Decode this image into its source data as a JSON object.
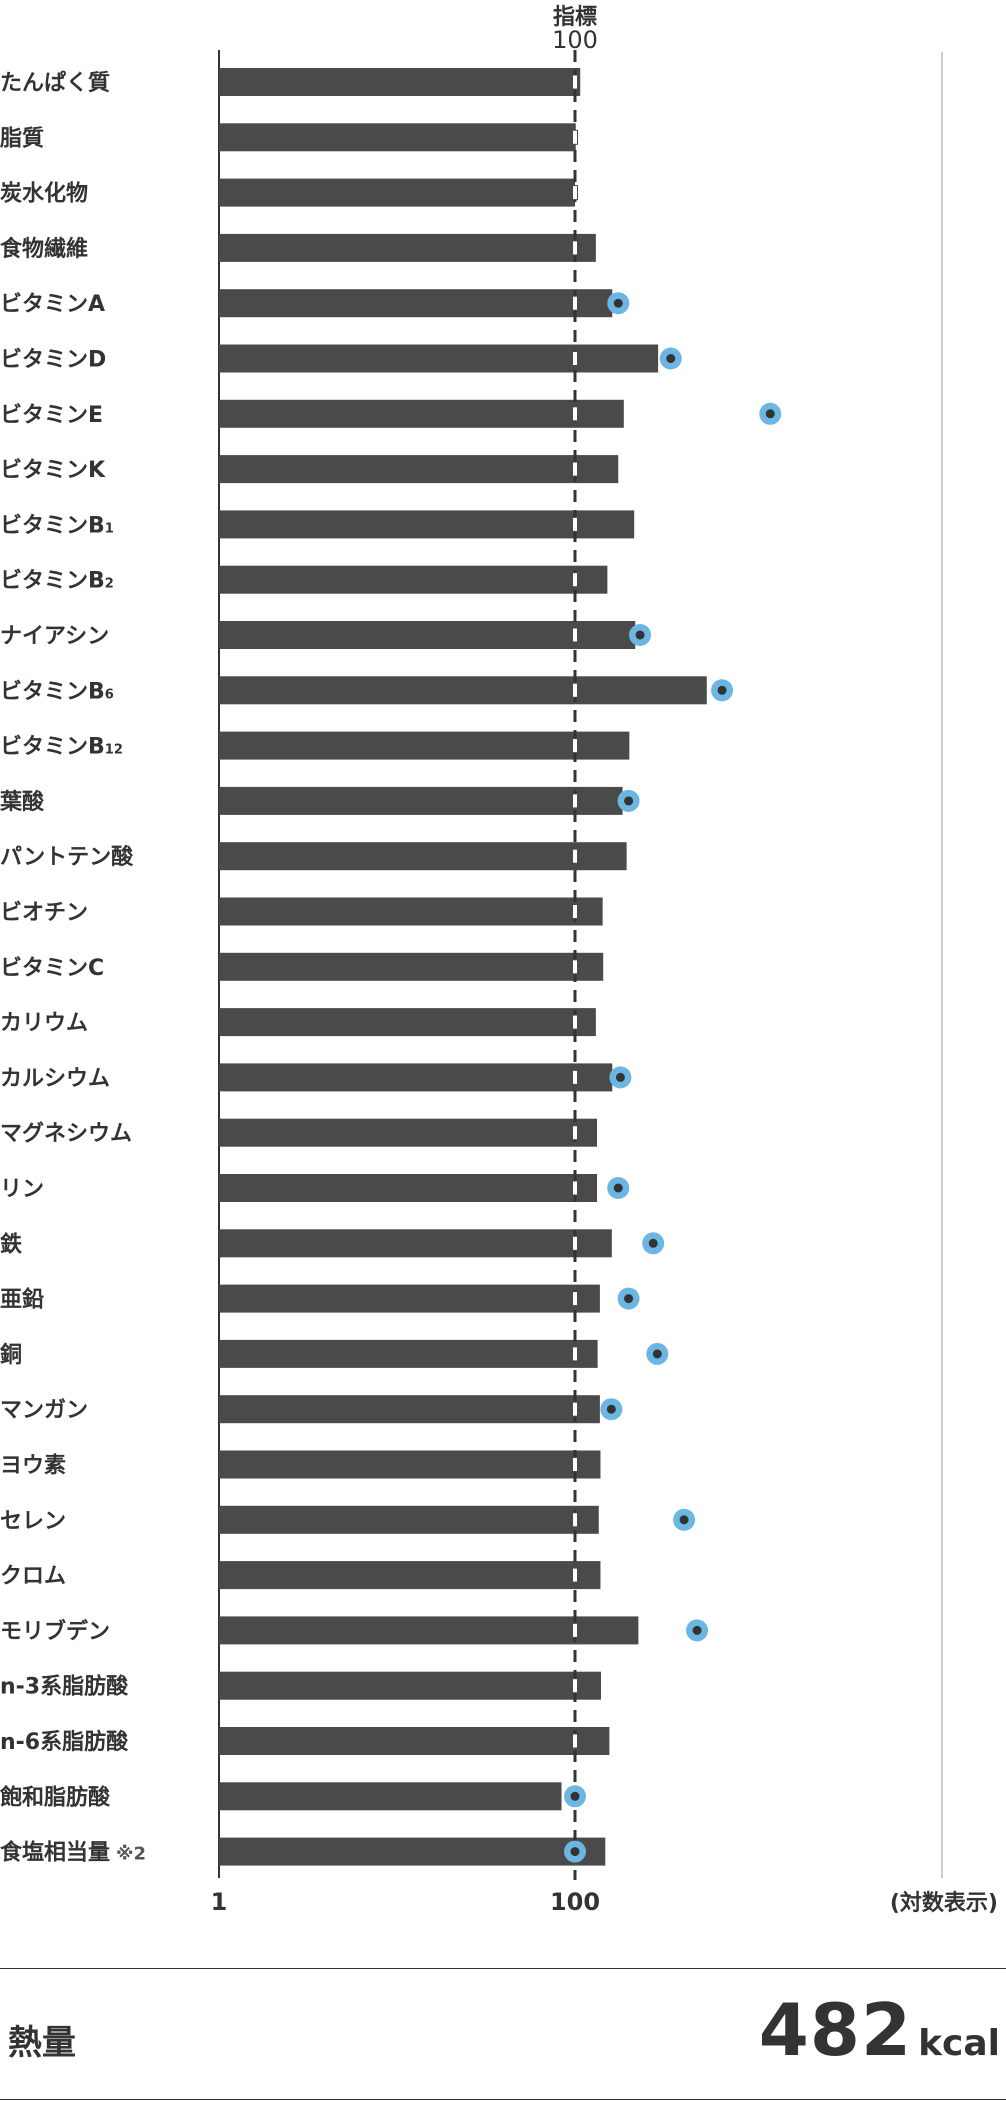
{
  "chart_data": {
    "type": "bar",
    "orientation": "horizontal",
    "scale": "log",
    "reference_label": "指標",
    "reference_value": "100",
    "x_ticks": [
      "1",
      "100"
    ],
    "scale_note": "(対数表示)",
    "categories": [
      {
        "label": "たんぱく質",
        "value": 107,
        "marker": null
      },
      {
        "label": "脂質",
        "value": 101,
        "marker": null
      },
      {
        "label": "炭水化物",
        "value": 100,
        "marker": null
      },
      {
        "label": "食物繊維",
        "value": 131,
        "marker": null
      },
      {
        "label": "ビタミンA",
        "value": 162,
        "marker": 175
      },
      {
        "label": "ビタミンD",
        "value": 293,
        "marker": 345
      },
      {
        "label": "ビタミンE",
        "value": 188,
        "marker": 1250
      },
      {
        "label": "ビタミンK",
        "value": 175,
        "marker": null
      },
      {
        "label": "ビタミンB",
        "sub": "1",
        "value": 215,
        "marker": null
      },
      {
        "label": "ビタミンB",
        "sub": "2",
        "value": 152,
        "marker": null
      },
      {
        "label": "ナイアシン",
        "value": 218,
        "marker": 232
      },
      {
        "label": "ビタミンB",
        "sub": "6",
        "value": 550,
        "marker": 670
      },
      {
        "label": "ビタミンB",
        "sub": "12",
        "value": 202,
        "marker": null
      },
      {
        "label": "葉酸",
        "value": 185,
        "marker": 200
      },
      {
        "label": "パントテン酸",
        "value": 195,
        "marker": null
      },
      {
        "label": "ビオチン",
        "value": 143,
        "marker": null
      },
      {
        "label": "ビタミンC",
        "value": 144,
        "marker": null
      },
      {
        "label": "カリウム",
        "value": 131,
        "marker": null
      },
      {
        "label": "カルシウム",
        "value": 162,
        "marker": 180
      },
      {
        "label": "マグネシウム",
        "value": 133,
        "marker": null
      },
      {
        "label": "リン",
        "value": 133,
        "marker": 175
      },
      {
        "label": "鉄",
        "value": 161,
        "marker": 275
      },
      {
        "label": "亜鉛",
        "value": 138,
        "marker": 200
      },
      {
        "label": "銅",
        "value": 134,
        "marker": 290
      },
      {
        "label": "マンガン",
        "value": 138,
        "marker": 160
      },
      {
        "label": "ヨウ素",
        "value": 139,
        "marker": null
      },
      {
        "label": "セレン",
        "value": 136,
        "marker": 410
      },
      {
        "label": "クロム",
        "value": 139,
        "marker": null
      },
      {
        "label": "モリブデン",
        "value": 227,
        "marker": 485
      },
      {
        "label": "n-3系脂肪酸",
        "value": 140,
        "marker": null
      },
      {
        "label": "n-6系脂肪酸",
        "value": 156,
        "marker": null
      },
      {
        "label": "飽和脂肪酸",
        "value": 84,
        "marker": 100
      },
      {
        "label": "食塩相当量",
        "note": "※2",
        "value": 148,
        "marker": 100
      }
    ],
    "colors": {
      "bar": "#4a4a4a",
      "axis": "#333333",
      "marker_ring": "#6cb6e3",
      "marker_dot": "#333333",
      "text": "#333333"
    }
  },
  "energy": {
    "label": "熱量",
    "value": "482",
    "unit": "kcal"
  }
}
